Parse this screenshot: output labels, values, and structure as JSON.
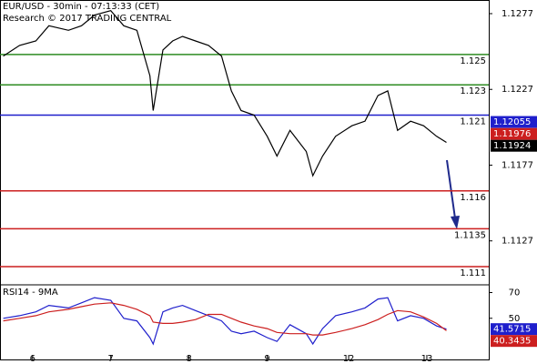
{
  "chart_data": {
    "type": "line",
    "title": "EUR/USD - 30min - 07:13:33 (CET)",
    "subtitle": "Research © 2017 TRADING CENTRAL",
    "x": [
      1,
      6,
      11,
      15,
      21,
      25,
      29,
      34,
      38,
      42,
      46,
      47,
      50,
      53,
      56,
      60,
      64,
      68,
      71,
      74,
      78,
      82,
      85,
      89,
      94,
      96,
      99,
      103,
      108,
      112,
      116,
      119,
      122,
      126,
      130,
      134,
      137
    ],
    "xlim": [
      0,
      150
    ],
    "xticks": [
      {
        "value": 10,
        "label": "6"
      },
      {
        "value": 34,
        "label": "7"
      },
      {
        "value": 58,
        "label": "8"
      },
      {
        "value": 82,
        "label": "9"
      },
      {
        "value": 107,
        "label": "12"
      },
      {
        "value": 131,
        "label": "13"
      }
    ],
    "series": [
      {
        "name": "EUR/USD",
        "color": "#000000",
        "values": [
          1.1249,
          1.1256,
          1.1259,
          1.1269,
          1.1266,
          1.1269,
          1.1276,
          1.1279,
          1.1269,
          1.1266,
          1.1236,
          1.1213,
          1.1253,
          1.1259,
          1.1262,
          1.1259,
          1.1256,
          1.1249,
          1.1226,
          1.1213,
          1.121,
          1.1196,
          1.1183,
          1.12,
          1.1186,
          1.117,
          1.1183,
          1.1196,
          1.1203,
          1.1206,
          1.1223,
          1.1226,
          1.12,
          1.1206,
          1.1203,
          1.1196,
          1.1192
        ]
      }
    ],
    "ylim": [
      1.1098,
      1.1286
    ],
    "yticks": [
      1.1277,
      1.1227,
      1.1177,
      1.1127
    ],
    "levels": [
      {
        "value": 1.125,
        "color": "#2e8b22"
      },
      {
        "value": 1.123,
        "color": "#2e8b22"
      },
      {
        "value": 1.121,
        "color": "#1f1fcc"
      },
      {
        "value": 1.116,
        "color": "#cc1f1f"
      },
      {
        "value": 1.1135,
        "color": "#cc1f1f"
      },
      {
        "value": 1.111,
        "color": "#cc1f1f"
      }
    ],
    "price_tags": [
      {
        "value": 1.12055,
        "color": "#1f1fcc"
      },
      {
        "value": 1.11976,
        "color": "#cc1f1f"
      },
      {
        "value": 1.11924,
        "color": "#000000"
      }
    ],
    "rsi": {
      "title": "RSI14 - 9MA",
      "ylim": [
        18,
        76
      ],
      "yticks": [
        70,
        50
      ],
      "series": [
        {
          "name": "RSI14",
          "color": "#1f1fcc",
          "values": [
            50,
            52,
            55,
            60,
            58,
            62,
            66,
            64,
            50,
            48,
            35,
            30,
            55,
            58,
            60,
            56,
            52,
            48,
            40,
            38,
            40,
            35,
            32,
            45,
            38,
            30,
            42,
            52,
            55,
            58,
            65,
            66,
            48,
            52,
            50,
            44,
            41.5715
          ]
        },
        {
          "name": "9MA",
          "color": "#cc1f1f",
          "values": [
            48,
            50,
            52,
            55,
            57,
            59,
            61,
            62,
            60,
            57,
            52,
            47,
            46,
            46,
            47,
            49,
            53,
            53,
            50,
            47,
            44,
            42,
            39,
            38,
            38,
            37,
            37,
            39,
            42,
            45,
            49,
            53,
            56,
            55,
            51,
            46,
            40.3435
          ]
        }
      ]
    }
  }
}
